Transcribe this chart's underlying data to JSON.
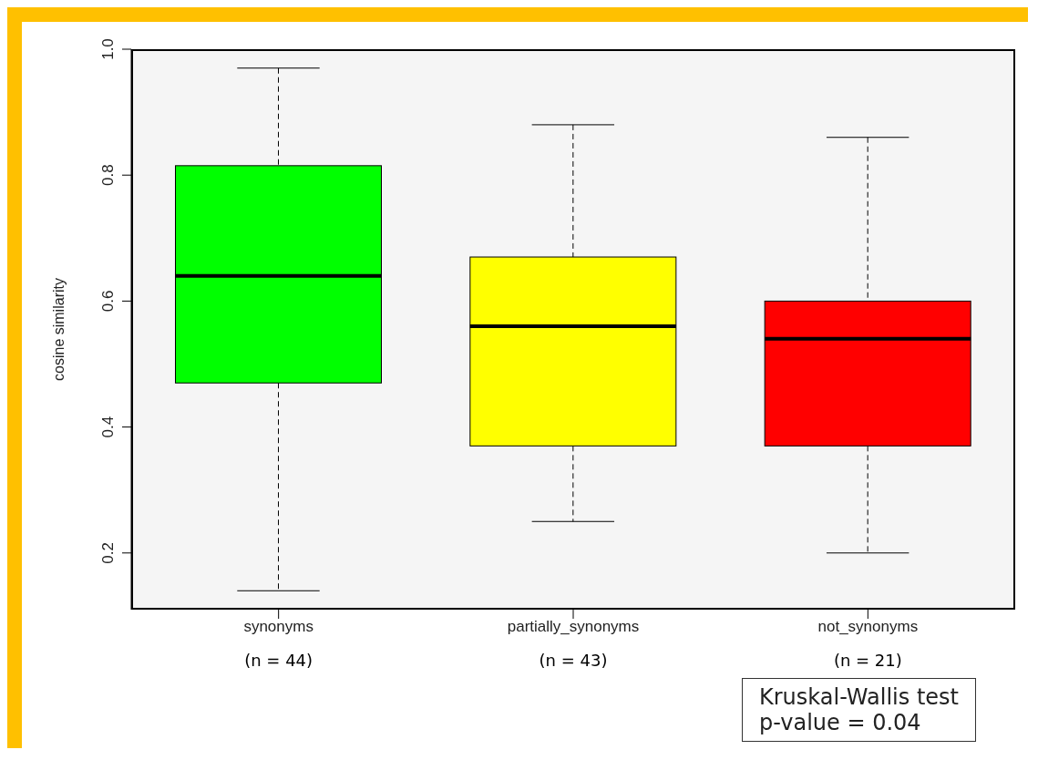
{
  "chart_data": {
    "type": "box",
    "ylabel": "cosine similarity",
    "categories": [
      "synonyms",
      "partially_synonyms",
      "not_synonyms"
    ],
    "colors": [
      "#00ff00",
      "#ffff00",
      "#ff0000"
    ],
    "boxes": [
      {
        "low": 0.14,
        "q1": 0.47,
        "median": 0.64,
        "q3": 0.815,
        "high": 0.97
      },
      {
        "low": 0.25,
        "q1": 0.37,
        "median": 0.56,
        "q3": 0.67,
        "high": 0.88
      },
      {
        "low": 0.2,
        "q1": 0.37,
        "median": 0.54,
        "q3": 0.6,
        "high": 0.86
      }
    ],
    "ylim": [
      0.11,
      1.0
    ],
    "yticks": [
      0.2,
      0.4,
      0.6,
      0.8,
      {
        "value": 1,
        "label": "1.0"
      }
    ],
    "grid": false,
    "legend": false,
    "line_style": "dashed",
    "annotations": [
      "(n = 44)",
      "(n = 43)",
      "(n = 21)",
      "Kruskal-Wallis test",
      "p-value = 0.04"
    ]
  }
}
